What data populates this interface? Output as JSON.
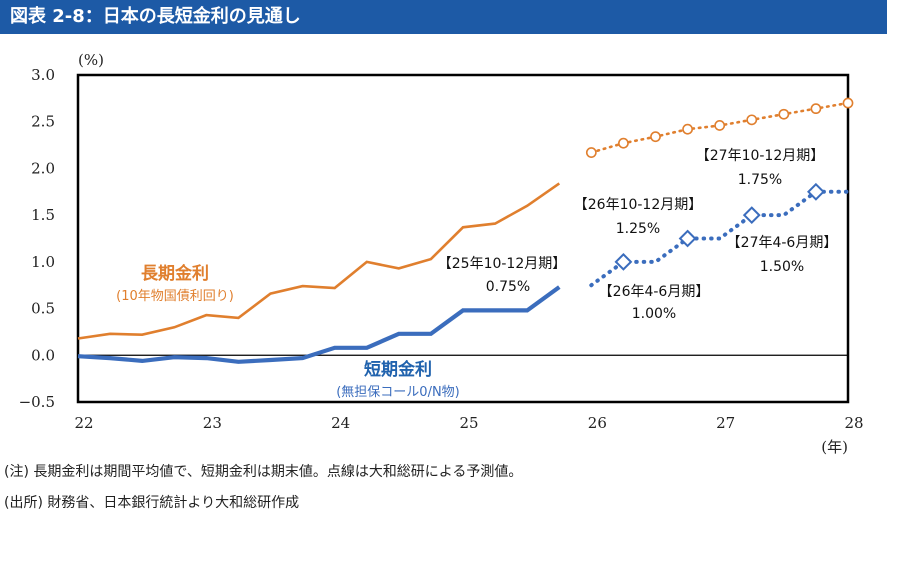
{
  "header": {
    "title": "図表 2-8：日本の長短金利の見通し"
  },
  "chart_data": {
    "type": "line",
    "unit_label": "(%)",
    "x_unit_label": "(年)",
    "x_ticks": [
      "22",
      "23",
      "24",
      "25",
      "26",
      "27",
      "28"
    ],
    "y_ticks": [
      "3.0",
      "2.5",
      "2.0",
      "1.5",
      "1.0",
      "0.5",
      "0.0",
      "−0.5"
    ],
    "xlim": [
      22,
      28
    ],
    "ylim": [
      -0.5,
      3.0
    ],
    "series": [
      {
        "name": "長期金利",
        "sublabel": "(10年物国債利回り)",
        "color": "#e07f2e",
        "actual": [
          [
            22.0,
            0.18
          ],
          [
            22.25,
            0.23
          ],
          [
            22.5,
            0.22
          ],
          [
            22.75,
            0.3
          ],
          [
            23.0,
            0.43
          ],
          [
            23.25,
            0.4
          ],
          [
            23.5,
            0.66
          ],
          [
            23.75,
            0.74
          ],
          [
            24.0,
            0.72
          ],
          [
            24.25,
            1.0
          ],
          [
            24.5,
            0.93
          ],
          [
            24.75,
            1.03
          ],
          [
            25.0,
            1.37
          ],
          [
            25.25,
            1.41
          ],
          [
            25.5,
            1.6
          ],
          [
            25.75,
            1.84
          ]
        ],
        "forecast": [
          [
            26.0,
            2.17
          ],
          [
            26.25,
            2.27
          ],
          [
            26.5,
            2.34
          ],
          [
            26.75,
            2.42
          ],
          [
            27.0,
            2.46
          ],
          [
            27.25,
            2.52
          ],
          [
            27.5,
            2.58
          ],
          [
            27.75,
            2.64
          ],
          [
            28.0,
            2.7
          ]
        ]
      },
      {
        "name": "短期金利",
        "sublabel": "(無担保コール0/N物)",
        "color": "#3b6dbd",
        "actual": [
          [
            22.0,
            -0.01
          ],
          [
            22.25,
            -0.03
          ],
          [
            22.5,
            -0.06
          ],
          [
            22.75,
            -0.02
          ],
          [
            23.0,
            -0.03
          ],
          [
            23.25,
            -0.07
          ],
          [
            23.5,
            -0.05
          ],
          [
            23.75,
            -0.03
          ],
          [
            24.0,
            0.08
          ],
          [
            24.25,
            0.08
          ],
          [
            24.5,
            0.23
          ],
          [
            24.75,
            0.23
          ],
          [
            25.0,
            0.48
          ],
          [
            25.25,
            0.48
          ],
          [
            25.5,
            0.48
          ],
          [
            25.75,
            0.73
          ]
        ],
        "forecast": [
          [
            26.0,
            0.75
          ],
          [
            26.25,
            1.0
          ],
          [
            26.5,
            1.0
          ],
          [
            26.75,
            1.25
          ],
          [
            27.0,
            1.25
          ],
          [
            27.25,
            1.5
          ],
          [
            27.5,
            1.5
          ],
          [
            27.75,
            1.75
          ],
          [
            28.0,
            1.75
          ]
        ],
        "markers": [
          [
            26.25,
            1.0
          ],
          [
            26.75,
            1.25
          ],
          [
            27.25,
            1.5
          ],
          [
            27.75,
            1.75
          ]
        ]
      }
    ],
    "annotations": [
      {
        "period": "【25年10-12月期】",
        "value": "0.75%"
      },
      {
        "period": "【26年4-6月期】",
        "value": "1.00%"
      },
      {
        "period": "【26年10-12月期】",
        "value": "1.25%"
      },
      {
        "period": "【27年4-6月期】",
        "value": "1.50%"
      },
      {
        "period": "【27年10-12月期】",
        "value": "1.75%"
      }
    ]
  },
  "notes": {
    "note1": "(注) 長期金利は期間平均値で、短期金利は期末値。点線は大和総研による予測値。",
    "note2": "(出所) 財務省、日本銀行統計より大和総研作成"
  }
}
